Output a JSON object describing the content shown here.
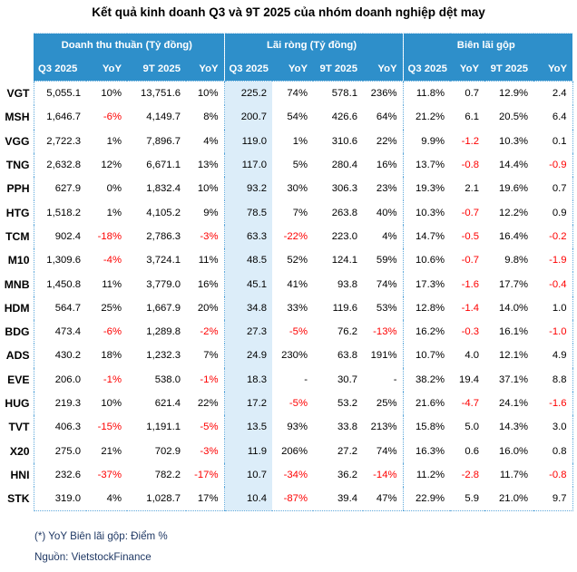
{
  "title": "Kết quả kinh doanh Q3 và 9T 2025 của nhóm doanh nghiệp dệt may",
  "footnote": "(*) YoY Biên lãi gộp: Điểm %",
  "source": "Nguồn: VietstockFinance",
  "colors": {
    "header_bg": "#2e8fca",
    "header_text": "#ffffff",
    "highlight_column_bg": "#dcedf9",
    "negative_text": "#fe0000",
    "border_dotted": "#5fa9db",
    "note_text": "#1f3864"
  },
  "chart_data": {
    "type": "table",
    "title": "Kết quả kinh doanh Q3 và 9T 2025 của nhóm doanh nghiệp dệt may",
    "groups": [
      {
        "label": "Doanh thu thuần (Tỷ đồng)"
      },
      {
        "label": "Lãi ròng (Tỷ đồng)"
      },
      {
        "label": "Biên lãi gộp"
      }
    ],
    "subheaders": [
      "Q3 2025",
      "YoY",
      "9T 2025",
      "YoY",
      "Q3 2025",
      "YoY",
      "9T 2025",
      "YoY",
      "Q3 2025",
      "YoY",
      "9T 2025",
      "YoY"
    ],
    "rows": [
      {
        "ticker": "VGT",
        "values": [
          "5,055.1",
          "10%",
          "13,751.6",
          "10%",
          "225.2",
          "74%",
          "578.1",
          "236%",
          "11.8%",
          "0.7",
          "12.9%",
          "2.4"
        ]
      },
      {
        "ticker": "MSH",
        "values": [
          "1,646.7",
          "-6%",
          "4,149.7",
          "8%",
          "200.7",
          "54%",
          "426.6",
          "64%",
          "21.2%",
          "6.1",
          "20.5%",
          "6.4"
        ]
      },
      {
        "ticker": "VGG",
        "values": [
          "2,722.3",
          "1%",
          "7,896.7",
          "4%",
          "119.0",
          "1%",
          "310.6",
          "22%",
          "9.9%",
          "-1.2",
          "10.3%",
          "0.1"
        ]
      },
      {
        "ticker": "TNG",
        "values": [
          "2,632.8",
          "12%",
          "6,671.1",
          "13%",
          "117.0",
          "5%",
          "280.4",
          "16%",
          "13.7%",
          "-0.8",
          "14.4%",
          "-0.9"
        ]
      },
      {
        "ticker": "PPH",
        "values": [
          "627.9",
          "0%",
          "1,832.4",
          "10%",
          "93.2",
          "30%",
          "306.3",
          "23%",
          "19.3%",
          "2.1",
          "19.6%",
          "0.7"
        ]
      },
      {
        "ticker": "HTG",
        "values": [
          "1,518.2",
          "1%",
          "4,105.2",
          "9%",
          "78.5",
          "7%",
          "263.8",
          "40%",
          "10.3%",
          "-0.7",
          "12.2%",
          "0.9"
        ]
      },
      {
        "ticker": "TCM",
        "values": [
          "902.4",
          "-18%",
          "2,786.3",
          "-3%",
          "63.3",
          "-22%",
          "223.0",
          "4%",
          "14.7%",
          "-0.5",
          "16.4%",
          "-0.2"
        ]
      },
      {
        "ticker": "M10",
        "values": [
          "1,309.6",
          "-4%",
          "3,724.1",
          "11%",
          "48.5",
          "52%",
          "124.1",
          "59%",
          "10.6%",
          "-0.7",
          "9.8%",
          "-1.9"
        ]
      },
      {
        "ticker": "MNB",
        "values": [
          "1,450.8",
          "11%",
          "3,779.0",
          "16%",
          "45.1",
          "41%",
          "93.8",
          "74%",
          "17.3%",
          "-1.6",
          "17.7%",
          "-0.4"
        ]
      },
      {
        "ticker": "HDM",
        "values": [
          "564.7",
          "25%",
          "1,667.9",
          "20%",
          "34.8",
          "33%",
          "119.6",
          "53%",
          "12.8%",
          "-1.4",
          "14.0%",
          "1.0"
        ]
      },
      {
        "ticker": "BDG",
        "values": [
          "473.4",
          "-6%",
          "1,289.8",
          "-2%",
          "27.3",
          "-5%",
          "76.2",
          "-13%",
          "16.2%",
          "-0.3",
          "16.1%",
          "-1.0"
        ]
      },
      {
        "ticker": "ADS",
        "values": [
          "430.2",
          "18%",
          "1,232.3",
          "7%",
          "24.9",
          "230%",
          "63.8",
          "191%",
          "10.7%",
          "4.0",
          "12.1%",
          "4.9"
        ]
      },
      {
        "ticker": "EVE",
        "values": [
          "206.0",
          "-1%",
          "538.0",
          "-1%",
          "18.3",
          "-",
          "30.7",
          "-",
          "38.2%",
          "19.4",
          "37.1%",
          "8.8"
        ]
      },
      {
        "ticker": "HUG",
        "values": [
          "219.3",
          "10%",
          "621.4",
          "22%",
          "17.2",
          "-5%",
          "53.2",
          "25%",
          "21.6%",
          "-4.7",
          "24.1%",
          "-1.6"
        ]
      },
      {
        "ticker": "TVT",
        "values": [
          "406.3",
          "-15%",
          "1,191.1",
          "-5%",
          "13.5",
          "93%",
          "33.8",
          "213%",
          "15.8%",
          "5.0",
          "14.3%",
          "3.0"
        ]
      },
      {
        "ticker": "X20",
        "values": [
          "275.0",
          "21%",
          "702.9",
          "-3%",
          "11.9",
          "206%",
          "27.2",
          "74%",
          "16.3%",
          "0.6",
          "16.0%",
          "0.8"
        ]
      },
      {
        "ticker": "HNI",
        "values": [
          "232.6",
          "-37%",
          "782.2",
          "-17%",
          "10.7",
          "-34%",
          "36.2",
          "-14%",
          "11.2%",
          "-2.8",
          "11.7%",
          "-0.8"
        ]
      },
      {
        "ticker": "STK",
        "values": [
          "319.0",
          "4%",
          "1,028.7",
          "17%",
          "10.4",
          "-87%",
          "39.4",
          "47%",
          "22.9%",
          "5.9",
          "21.0%",
          "9.7"
        ]
      }
    ]
  }
}
